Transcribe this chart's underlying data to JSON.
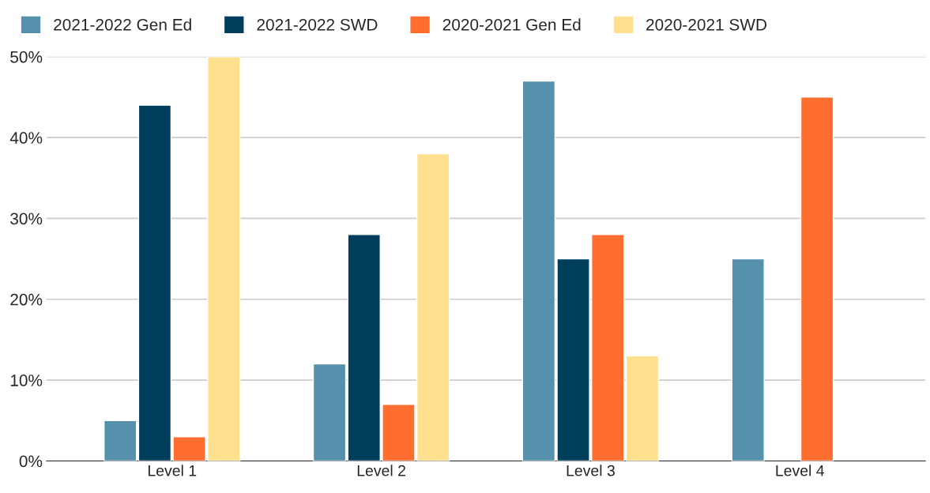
{
  "chart_data": {
    "type": "bar",
    "categories": [
      "Level 1",
      "Level 2",
      "Level 3",
      "Level 4"
    ],
    "series": [
      {
        "name": "2021-2022 Gen Ed",
        "color": "#5591ad",
        "values": [
          5,
          12,
          47,
          25
        ]
      },
      {
        "name": "2021-2022 SWD",
        "color": "#003f5c",
        "values": [
          44,
          28,
          25,
          null
        ]
      },
      {
        "name": "2020-2021 Gen Ed",
        "color": "#ff6e2f",
        "values": [
          3,
          7,
          28,
          45
        ]
      },
      {
        "name": "2020-2021 SWD",
        "color": "#ffe08f",
        "values": [
          50,
          38,
          13,
          null
        ]
      }
    ],
    "ylim": [
      0,
      50
    ],
    "yticks": [
      {
        "value": 0,
        "label": "0%"
      },
      {
        "value": 10,
        "label": "10%"
      },
      {
        "value": 20,
        "label": "20%"
      },
      {
        "value": 30,
        "label": "30%"
      },
      {
        "value": 40,
        "label": "40%"
      },
      {
        "value": 50,
        "label": "50%"
      }
    ],
    "grid": "y",
    "legend": "top"
  }
}
